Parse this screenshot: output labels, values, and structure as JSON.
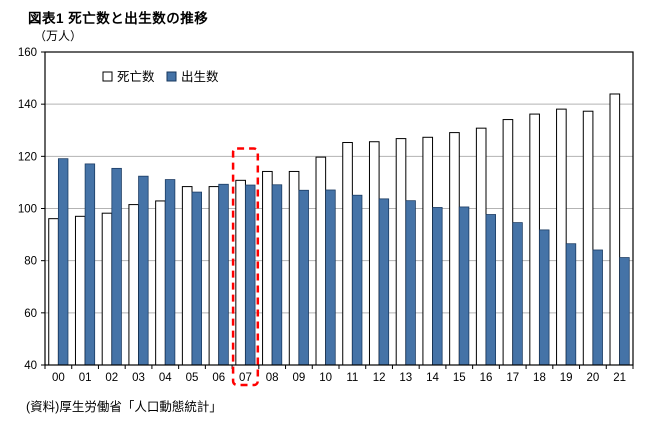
{
  "title": "図表1 死亡数と出生数の推移",
  "unit_label": "（万人）",
  "source": "(資料)厚生労働省「人口動態統計」",
  "chart_data": {
    "type": "bar",
    "categories": [
      "00",
      "01",
      "02",
      "03",
      "04",
      "05",
      "06",
      "07",
      "08",
      "09",
      "10",
      "11",
      "12",
      "13",
      "14",
      "15",
      "16",
      "17",
      "18",
      "19",
      "20",
      "21"
    ],
    "series": [
      {
        "key": "deaths",
        "name": "死亡数",
        "color": "#ffffff",
        "border": "#000000",
        "values": [
          96.1,
          97.0,
          98.2,
          101.5,
          102.9,
          108.4,
          108.4,
          110.8,
          114.2,
          114.2,
          119.7,
          125.3,
          125.6,
          126.8,
          127.3,
          129.1,
          130.8,
          134.1,
          136.2,
          138.1,
          137.3,
          143.9
        ]
      },
      {
        "key": "births",
        "name": "出生数",
        "color": "#4573a7",
        "border": "#17375e",
        "values": [
          119.1,
          117.1,
          115.4,
          112.4,
          111.1,
          106.3,
          109.3,
          109.0,
          109.1,
          107.0,
          107.1,
          105.1,
          103.7,
          103.0,
          100.4,
          100.6,
          97.7,
          94.6,
          91.8,
          86.5,
          84.1,
          81.2
        ]
      }
    ],
    "ylim": [
      40,
      160
    ],
    "ytick_interval": 20,
    "grid": true,
    "legend_position": "top-left-inside",
    "highlight": {
      "category": "07",
      "top_value": 123,
      "color": "#ff0000",
      "style": "dashed"
    }
  }
}
